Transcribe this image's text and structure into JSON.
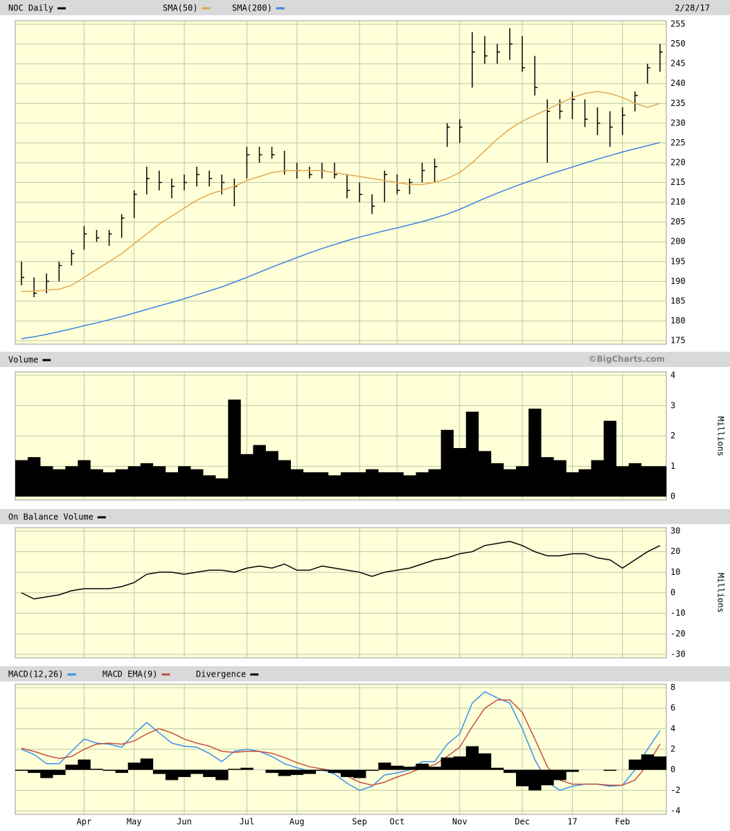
{
  "chart_data": [
    {
      "type": "ohlc",
      "date": "2/28/17",
      "ylim": [
        175,
        255
      ],
      "yticks": [
        175,
        180,
        185,
        190,
        195,
        200,
        205,
        210,
        215,
        220,
        225,
        230,
        235,
        240,
        245,
        250,
        255
      ],
      "grid": true,
      "series": [
        {
          "name": "NOC Daily",
          "kind": "ohlc",
          "color": "#000000",
          "high": [
            195,
            191,
            192,
            195,
            198,
            204,
            203,
            203,
            207,
            213,
            219,
            218,
            216,
            217,
            219,
            218,
            217,
            216,
            224,
            224,
            224,
            223,
            220,
            219,
            220,
            220,
            217,
            215,
            212,
            218,
            217,
            216,
            220,
            221,
            230,
            231,
            253,
            252,
            250,
            254,
            252,
            247,
            236,
            236,
            238,
            236,
            234,
            233,
            234,
            238,
            245,
            250
          ],
          "low": [
            189,
            186,
            187,
            190,
            194,
            198,
            200,
            199,
            201,
            206,
            212,
            213,
            211,
            213,
            214,
            214,
            212,
            209,
            216,
            220,
            221,
            217,
            216,
            216,
            216,
            216,
            211,
            210,
            207,
            210,
            212,
            212,
            215,
            215,
            224,
            225,
            239,
            245,
            245,
            246,
            243,
            237,
            220,
            231,
            231,
            229,
            227,
            224,
            227,
            233,
            240,
            243
          ],
          "close": [
            191,
            187,
            190,
            194,
            197,
            202,
            201,
            202,
            206,
            212,
            216,
            215,
            214,
            215,
            217,
            216,
            215,
            214,
            222,
            222,
            222,
            218,
            218,
            217,
            218,
            217,
            213,
            212,
            209,
            217,
            213,
            215,
            218,
            219,
            229,
            229,
            248,
            247,
            248,
            250,
            244,
            239,
            233,
            233,
            236,
            231,
            230,
            229,
            232,
            237,
            244,
            248
          ]
        },
        {
          "name": "SMA(50)",
          "kind": "line",
          "color": "#e0a850",
          "values": [
            187.5,
            187.5,
            187.8,
            188,
            189,
            191,
            193,
            195,
            197,
            199.5,
            202,
            204.5,
            206.5,
            208.5,
            210.5,
            212,
            213,
            214,
            215.5,
            216.5,
            217.5,
            218,
            218,
            218,
            218,
            217.5,
            217,
            216.5,
            216,
            215.5,
            215,
            214.5,
            214.5,
            215,
            216,
            217.5,
            220,
            223,
            226,
            228.5,
            230.5,
            232,
            233.5,
            235,
            236.5,
            237.5,
            238,
            237.5,
            236.5,
            235,
            234,
            235
          ]
        },
        {
          "name": "SMA(200)",
          "kind": "line",
          "color": "#3a80e0",
          "values": [
            175.5,
            176,
            176.6,
            177.3,
            178,
            178.8,
            179.5,
            180.3,
            181.1,
            182,
            182.9,
            183.8,
            184.7,
            185.6,
            186.6,
            187.6,
            188.6,
            189.8,
            191,
            192.3,
            193.6,
            194.8,
            196,
            197.2,
            198.3,
            199.3,
            200.3,
            201.2,
            202,
            202.8,
            203.5,
            204.3,
            205.1,
            206,
            207,
            208.2,
            209.6,
            211,
            212.3,
            213.5,
            214.7,
            215.8,
            216.9,
            217.9,
            218.9,
            219.9,
            220.9,
            221.8,
            222.7,
            223.5,
            224.3,
            225.1
          ]
        }
      ]
    },
    {
      "type": "bar",
      "source": "©BigCharts.com",
      "unit_label": "Millions",
      "ylim": [
        0,
        4
      ],
      "yticks": [
        0,
        1,
        2,
        3,
        4
      ],
      "grid": true,
      "series": [
        {
          "name": "Volume",
          "kind": "bar",
          "color": "#000000",
          "values": [
            1.2,
            1.3,
            1.0,
            0.9,
            1.0,
            1.2,
            0.9,
            0.8,
            0.9,
            1.0,
            1.1,
            1.0,
            0.8,
            1.0,
            0.9,
            0.7,
            0.6,
            3.2,
            1.4,
            1.7,
            1.5,
            1.2,
            0.9,
            0.8,
            0.8,
            0.7,
            0.8,
            0.8,
            0.9,
            0.8,
            0.8,
            0.7,
            0.8,
            0.9,
            2.2,
            1.6,
            2.8,
            1.5,
            1.1,
            0.9,
            1.0,
            2.9,
            1.3,
            1.2,
            0.8,
            0.9,
            1.2,
            2.5,
            1.0,
            1.1,
            1.0,
            1.0
          ]
        }
      ]
    },
    {
      "type": "line",
      "unit_label": "Millions",
      "ylim": [
        -30,
        30
      ],
      "yticks": [
        -30,
        -20,
        -10,
        0,
        10,
        20,
        30
      ],
      "grid": true,
      "series": [
        {
          "name": "On Balance Volume",
          "kind": "line",
          "color": "#000000",
          "values": [
            0,
            -3,
            -2,
            -1,
            1,
            2,
            2,
            2,
            3,
            5,
            9,
            10,
            10,
            9,
            10,
            11,
            11,
            10,
            12,
            13,
            12,
            14,
            11,
            11,
            13,
            12,
            11,
            10,
            8,
            10,
            11,
            12,
            14,
            16,
            17,
            19,
            20,
            23,
            24,
            25,
            23,
            20,
            18,
            18,
            19,
            19,
            17,
            16,
            12,
            16,
            20,
            23
          ]
        }
      ]
    },
    {
      "type": "line",
      "ylim": [
        -4,
        8
      ],
      "yticks": [
        -4,
        -2,
        0,
        2,
        4,
        6,
        8
      ],
      "grid": true,
      "categories": [
        null,
        null,
        null,
        null,
        null,
        "Apr",
        null,
        null,
        null,
        "May",
        null,
        null,
        null,
        "Jun",
        null,
        null,
        null,
        null,
        "Jul",
        null,
        null,
        null,
        "Aug",
        null,
        null,
        null,
        null,
        "Sep",
        null,
        null,
        "Oct",
        null,
        null,
        null,
        null,
        "Nov",
        null,
        null,
        null,
        null,
        "Dec",
        null,
        null,
        null,
        "17",
        null,
        null,
        null,
        "Feb",
        null,
        null,
        null
      ],
      "series": [
        {
          "name": "MACD(12,26)",
          "kind": "line",
          "color": "#3a90f0",
          "values": [
            2.0,
            1.5,
            0.6,
            0.6,
            1.8,
            3.0,
            2.6,
            2.5,
            2.2,
            3.5,
            4.6,
            3.6,
            2.6,
            2.3,
            2.2,
            1.6,
            0.8,
            1.8,
            2.0,
            1.8,
            1.3,
            0.6,
            0.2,
            -0.1,
            0,
            -0.4,
            -1.3,
            -2.0,
            -1.6,
            -0.5,
            -0.3,
            0,
            0.8,
            0.8,
            2.5,
            3.5,
            6.5,
            7.6,
            7.0,
            6.5,
            4.0,
            1.0,
            -1.2,
            -2.0,
            -1.6,
            -1.4,
            -1.4,
            -1.6,
            -1.5,
            0,
            2.0,
            3.8
          ]
        },
        {
          "name": "MACD EMA(9)",
          "kind": "line",
          "color": "#c05040",
          "values": [
            2.1,
            1.8,
            1.4,
            1.1,
            1.3,
            2.0,
            2.5,
            2.6,
            2.5,
            2.8,
            3.5,
            4.0,
            3.6,
            3.0,
            2.6,
            2.3,
            1.8,
            1.7,
            1.8,
            1.8,
            1.6,
            1.2,
            0.7,
            0.3,
            0.1,
            -0.1,
            -0.6,
            -1.2,
            -1.5,
            -1.2,
            -0.7,
            -0.3,
            0.2,
            0.5,
            1.3,
            2.2,
            4.2,
            6.0,
            6.8,
            6.8,
            5.6,
            3.0,
            0.3,
            -1.0,
            -1.4,
            -1.4,
            -1.4,
            -1.5,
            -1.5,
            -1.0,
            0.5,
            2.5
          ]
        },
        {
          "name": "Divergence",
          "kind": "bar",
          "color": "#000000",
          "values": [
            -0.1,
            -0.3,
            -0.8,
            -0.5,
            0.5,
            1.0,
            0.1,
            -0.1,
            -0.3,
            0.7,
            1.1,
            -0.4,
            -1.0,
            -0.7,
            -0.4,
            -0.7,
            -1.0,
            0.1,
            0.2,
            0,
            -0.3,
            -0.6,
            -0.5,
            -0.4,
            -0.1,
            -0.3,
            -0.7,
            -0.8,
            -0.1,
            0.7,
            0.4,
            0.3,
            0.6,
            0.3,
            1.2,
            1.3,
            2.3,
            1.6,
            0.2,
            -0.3,
            -1.6,
            -2.0,
            -1.5,
            -1.0,
            -0.2,
            0,
            0,
            -0.1,
            0,
            1.0,
            1.5,
            1.3
          ]
        }
      ]
    }
  ]
}
